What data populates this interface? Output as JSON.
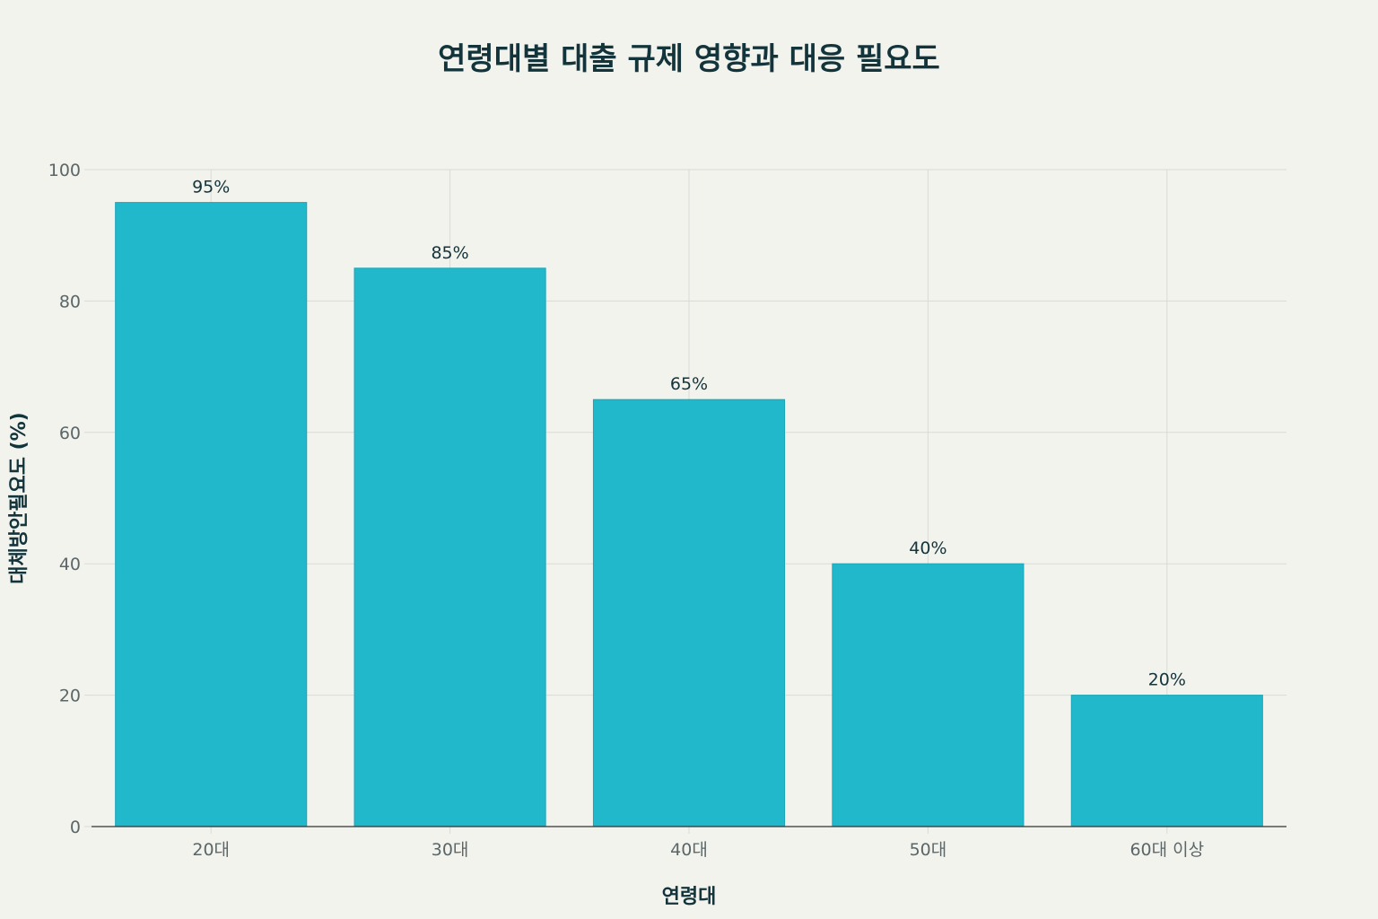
{
  "chart_data": {
    "type": "bar",
    "title": "연령대별 대출 규제 영향과 대응 필요도",
    "xlabel": "연령대",
    "ylabel": "대체방안필요도 (%)",
    "categories": [
      "20대",
      "30대",
      "40대",
      "50대",
      "60대 이상"
    ],
    "values": [
      95,
      85,
      65,
      40,
      20
    ],
    "data_labels": [
      "95%",
      "85%",
      "65%",
      "40%",
      "20%"
    ],
    "ylim": [
      0,
      100
    ],
    "yticks": [
      0,
      20,
      40,
      60,
      80,
      100
    ],
    "grid": true,
    "legend": "none",
    "bar_color": "#21b8cc",
    "bar_edge_color": "#1ca6b8",
    "grid_color": "#d9dad5",
    "axis_color": "#333333"
  }
}
